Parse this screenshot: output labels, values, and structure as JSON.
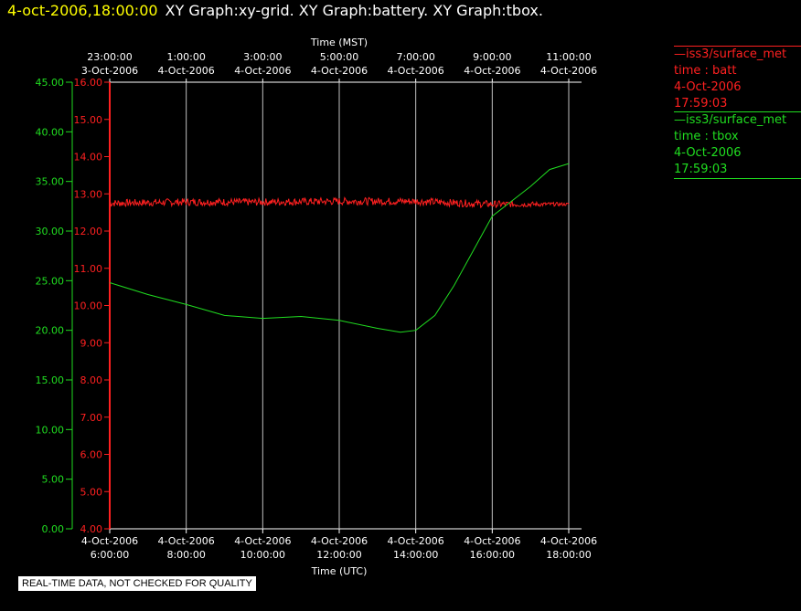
{
  "header": {
    "timestamp": "4-oct-2006,18:00:00",
    "graphs": "XY Graph:xy-grid.  XY Graph:battery.  XY Graph:tbox."
  },
  "colors": {
    "batt": "#ff2020",
    "tbox": "#20dd20",
    "grid": "#c0c0c0",
    "title": "#ffff00"
  },
  "legend": [
    {
      "source": "—iss3/surface_met",
      "var": "time : batt",
      "date": "4-Oct-2006",
      "time": "17:59:03",
      "color": "#ff2020"
    },
    {
      "source": "—iss3/surface_met",
      "var": "time : tbox",
      "date": "4-Oct-2006",
      "time": "17:59:03",
      "color": "#20dd20"
    }
  ],
  "footer": {
    "quality_note": "REAL-TIME DATA, NOT CHECKED FOR QUALITY"
  },
  "chart_data": {
    "type": "line",
    "grid": true,
    "x_top": {
      "label": "Time (MST)",
      "ticks": [
        {
          "date": "3-Oct-2006",
          "time": "23:00:00"
        },
        {
          "date": "4-Oct-2006",
          "time": "1:00:00"
        },
        {
          "date": "4-Oct-2006",
          "time": "3:00:00"
        },
        {
          "date": "4-Oct-2006",
          "time": "5:00:00"
        },
        {
          "date": "4-Oct-2006",
          "time": "7:00:00"
        },
        {
          "date": "4-Oct-2006",
          "time": "9:00:00"
        },
        {
          "date": "4-Oct-2006",
          "time": "11:00:00"
        }
      ]
    },
    "x_bottom": {
      "label": "Time (UTC)",
      "range": [
        "2006-10-04 06:00",
        "2006-10-04 18:00"
      ],
      "ticks": [
        {
          "date": "4-Oct-2006",
          "time": "6:00:00"
        },
        {
          "date": "4-Oct-2006",
          "time": "8:00:00"
        },
        {
          "date": "4-Oct-2006",
          "time": "10:00:00"
        },
        {
          "date": "4-Oct-2006",
          "time": "12:00:00"
        },
        {
          "date": "4-Oct-2006",
          "time": "14:00:00"
        },
        {
          "date": "4-Oct-2006",
          "time": "16:00:00"
        },
        {
          "date": "4-Oct-2006",
          "time": "18:00:00"
        }
      ]
    },
    "y_left": {
      "ylim": [
        0,
        45
      ],
      "ticks": [
        "0.00",
        "5.00",
        "10.00",
        "15.00",
        "20.00",
        "25.00",
        "30.00",
        "35.00",
        "40.00",
        "45.00"
      ]
    },
    "y_right": {
      "ylim": [
        4,
        16
      ],
      "ticks": [
        "4.00",
        "5.00",
        "6.00",
        "7.00",
        "8.00",
        "9.00",
        "10.00",
        "11.00",
        "12.00",
        "13.00",
        "14.00",
        "15.00",
        "16.00"
      ]
    },
    "series": [
      {
        "name": "time : batt",
        "axis": "right",
        "noise": 0.1,
        "x": [
          "2006-10-04 06:00",
          "2006-10-04 08:00",
          "2006-10-04 10:00",
          "2006-10-04 12:00",
          "2006-10-04 14:00",
          "2006-10-04 16:00",
          "2006-10-04 18:00"
        ],
        "y": [
          12.75,
          12.78,
          12.78,
          12.8,
          12.8,
          12.72,
          12.72
        ]
      },
      {
        "name": "time : tbox",
        "axis": "left",
        "x": [
          "2006-10-04 06:00",
          "2006-10-04 07:00",
          "2006-10-04 08:00",
          "2006-10-04 09:00",
          "2006-10-04 10:00",
          "2006-10-04 11:00",
          "2006-10-04 12:00",
          "2006-10-04 13:00",
          "2006-10-04 13:36",
          "2006-10-04 14:00",
          "2006-10-04 14:30",
          "2006-10-04 15:00",
          "2006-10-04 15:30",
          "2006-10-04 16:00",
          "2006-10-04 16:30",
          "2006-10-04 17:00",
          "2006-10-04 17:30",
          "2006-10-04 18:00"
        ],
        "y": [
          24.8,
          23.6,
          22.6,
          21.5,
          21.2,
          21.4,
          21.0,
          20.2,
          19.8,
          20.0,
          21.5,
          24.5,
          28.0,
          31.5,
          33.0,
          34.5,
          36.2,
          36.8
        ]
      }
    ]
  }
}
